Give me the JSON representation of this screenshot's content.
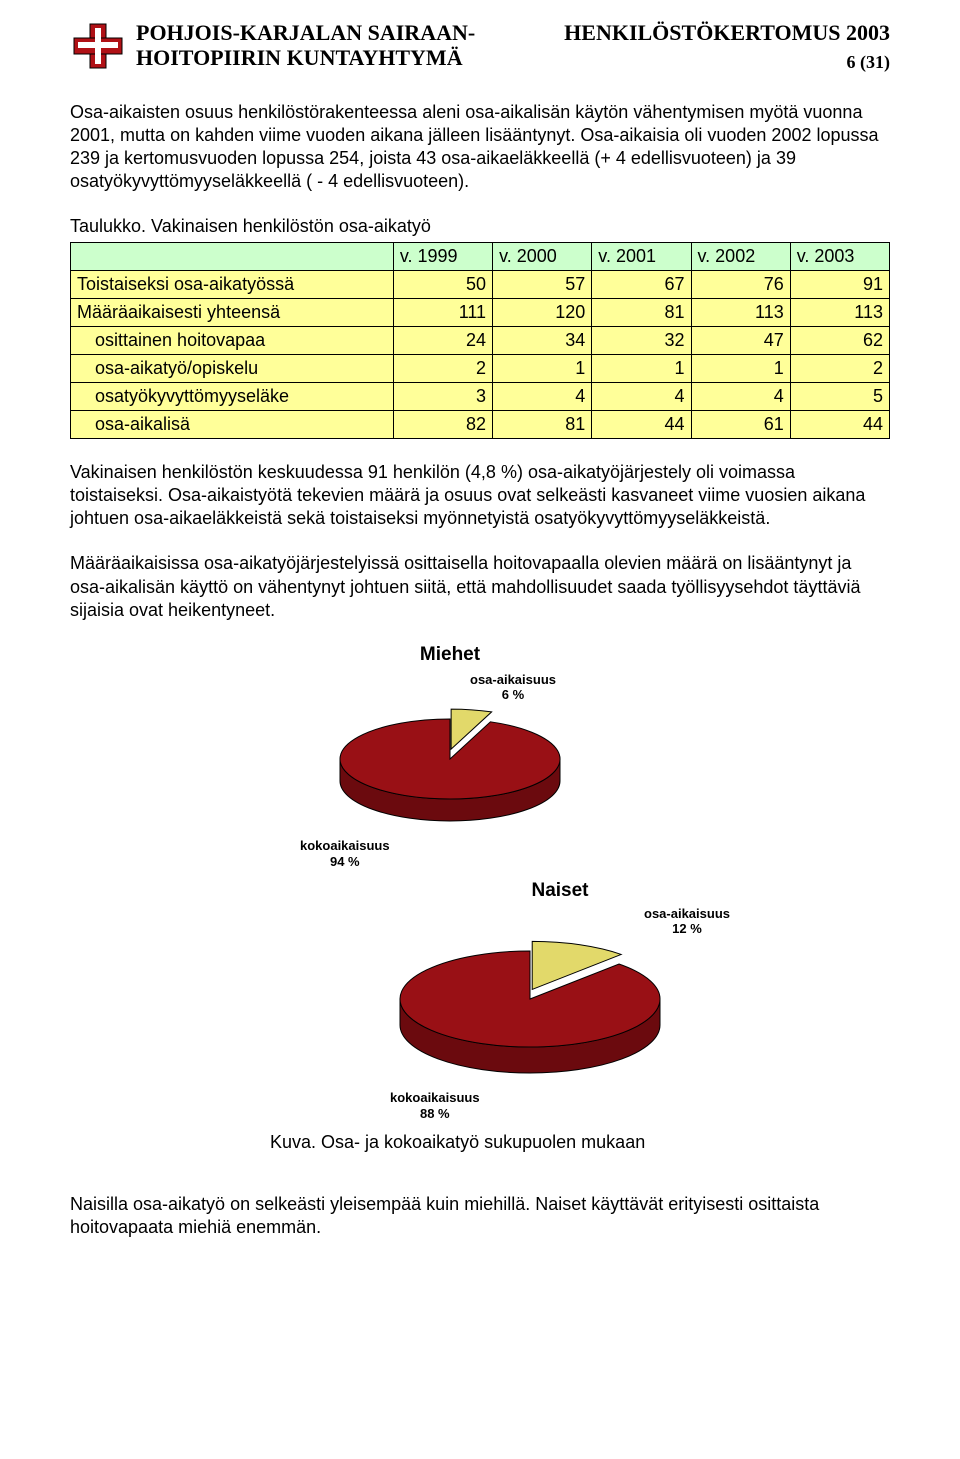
{
  "header": {
    "org_line1": "POHJOIS-KARJALAN SAIRAAN-",
    "org_line2": "HOITOPIIRIN KUNTAYHTYMÄ",
    "doc_title": "HENKILÖSTÖKERTOMUS 2003",
    "page_num": "6 (31)"
  },
  "logo": {
    "main_color": "#b01116",
    "accent_color": "#ffffff",
    "outline": "#000000"
  },
  "paras": {
    "p1": "Osa-aikaisten osuus henkilöstörakenteessa aleni osa-aikalisän käytön vähentymisen myötä vuonna 2001, mutta on kahden viime vuoden aikana jälleen lisääntynyt. Osa-aikaisia oli vuoden 2002 lopussa 239 ja kertomusvuoden lopussa 254, joista 43 osa-aikaeläkkeellä (+ 4 edellisvuoteen) ja 39 osatyökyvyttömyyseläkkeellä ( - 4 edellisvuoteen).",
    "table_caption": "Taulukko. Vakinaisen henkilöstön osa-aikatyö",
    "p2": "Vakinaisen henkilöstön keskuudessa 91 henkilön (4,8 %) osa-aikatyöjärjestely oli voimassa toistaiseksi. Osa-aikaistyötä tekevien määrä ja osuus ovat selkeästi kasvaneet viime vuosien aikana johtuen osa-aikaeläkkeistä sekä  toistaiseksi myönnetyistä osatyökyvyttömyyseläkkeistä.",
    "p3": "Määräaikaisissa osa-aikatyöjärjestelyissä osittaisella hoitovapaalla olevien määrä on lisääntynyt ja osa-aikalisän käyttö on vähentynyt johtuen siitä, että  mahdollisuudet saada työllisyysehdot täyttäviä sijaisia ovat heikentyneet.",
    "fig_caption": "Kuva. Osa- ja kokoaikatyö sukupuolen mukaan",
    "p4": "Naisilla osa-aikatyö on selkeästi yleisempää kuin miehillä. Naiset käyttävät erityisesti osittaista hoitovapaata miehiä enemmän."
  },
  "table": {
    "header_bg": "#ccffcc",
    "row_bg": "#ffff99",
    "columns": [
      "",
      "v. 1999",
      "v. 2000",
      "v. 2001",
      "v. 2002",
      "v. 2003"
    ],
    "rows": [
      {
        "label": "Toistaiseksi osa-aikatyössä",
        "vals": [
          50,
          57,
          67,
          76,
          91
        ],
        "yellow": true,
        "indent": false
      },
      {
        "label": "Määräaikaisesti yhteensä",
        "vals": [
          111,
          120,
          81,
          113,
          113
        ],
        "yellow": true,
        "indent": false
      },
      {
        "label": "osittainen hoitovapaa",
        "vals": [
          24,
          34,
          32,
          47,
          62
        ],
        "yellow": true,
        "indent": true
      },
      {
        "label": "osa-aikatyö/opiskelu",
        "vals": [
          2,
          1,
          1,
          1,
          2
        ],
        "yellow": true,
        "indent": true
      },
      {
        "label": "osatyökyvyttömyyseläke",
        "vals": [
          3,
          4,
          4,
          4,
          5
        ],
        "yellow": true,
        "indent": true
      },
      {
        "label": "osa-aikalisä",
        "vals": [
          82,
          81,
          44,
          61,
          44
        ],
        "yellow": true,
        "indent": true
      }
    ]
  },
  "charts": {
    "miehet": {
      "title": "Miehet",
      "slices": [
        {
          "label_name": "osa-aikaisuus",
          "label_pct": "6 %",
          "value": 6,
          "color": "#e2d96a"
        },
        {
          "label_name": "kokoaikaisuus",
          "label_pct": "94 %",
          "value": 94,
          "color": "#991015"
        }
      ],
      "side_color": "#6b0a0e",
      "outline": "#000000"
    },
    "naiset": {
      "title": "Naiset",
      "slices": [
        {
          "label_name": "osa-aikaisuus",
          "label_pct": "12 %",
          "value": 12,
          "color": "#e2d96a"
        },
        {
          "label_name": "kokoaikaisuus",
          "label_pct": "88 %",
          "value": 88,
          "color": "#991015"
        }
      ],
      "side_color": "#6b0a0e",
      "outline": "#000000"
    }
  }
}
